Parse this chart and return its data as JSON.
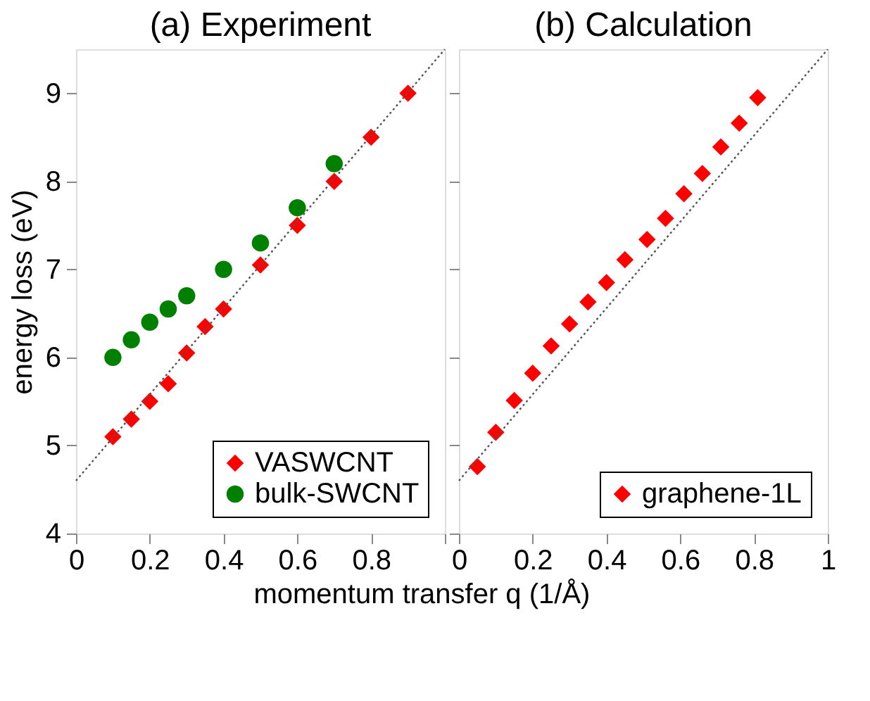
{
  "chart_data": [
    {
      "type": "scatter",
      "title": "(a) Experiment",
      "ylabel": "energy loss (eV)",
      "xlabel": "momentum transfer q (1/Å)",
      "xlim": [
        0,
        1
      ],
      "ylim": [
        4,
        9.5
      ],
      "xticks": [
        0,
        0.2,
        0.4,
        0.6,
        0.8,
        {
          "value": 1,
          "label": null
        }
      ],
      "yticks": [
        4,
        5,
        6,
        7,
        8,
        9
      ],
      "grid": false,
      "legend": "bottom right",
      "series": [
        {
          "name": "VASWCNT",
          "color": "#ff0000",
          "marker": "diamond",
          "x": [
            0.1,
            0.15,
            0.2,
            0.25,
            0.3,
            0.35,
            0.4,
            0.5,
            0.6,
            0.7,
            0.8,
            0.9
          ],
          "values": [
            5.1,
            5.3,
            5.5,
            5.7,
            6.05,
            6.35,
            6.55,
            7.05,
            7.5,
            8.0,
            8.5,
            9.0
          ]
        },
        {
          "name": "bulk-SWCNT",
          "color": "#008000",
          "marker": "circle",
          "x": [
            0.1,
            0.15,
            0.2,
            0.25,
            0.3,
            0.4,
            0.5,
            0.6,
            0.7
          ],
          "values": [
            6.0,
            6.2,
            6.4,
            6.55,
            6.7,
            7.0,
            7.3,
            7.7,
            8.2
          ]
        },
        {
          "type": "line",
          "color": "#555555",
          "line_style": "dotted",
          "x": [
            0,
            1
          ],
          "values": [
            4.6,
            9.5
          ]
        }
      ]
    },
    {
      "type": "scatter",
      "title": "(b) Calculation",
      "xlim": [
        0,
        1
      ],
      "ylim": [
        4,
        9.5
      ],
      "xticks": [
        0,
        0.2,
        0.4,
        0.6,
        0.8,
        1
      ],
      "yticks": [
        4,
        5,
        6,
        7,
        8,
        9
      ],
      "grid": false,
      "legend": "bottom right",
      "tick_labels": "x",
      "series": [
        {
          "name": "graphene-1L",
          "color": "#ff0000",
          "marker": "diamond",
          "x": [
            0.05,
            0.1,
            0.15,
            0.2,
            0.25,
            0.3,
            0.35,
            0.4,
            0.45,
            0.51,
            0.56,
            0.61,
            0.66,
            0.71,
            0.76,
            0.81
          ],
          "values": [
            4.76,
            5.15,
            5.51,
            5.82,
            6.13,
            6.38,
            6.63,
            6.85,
            7.11,
            7.34,
            7.58,
            7.86,
            8.09,
            8.39,
            8.66,
            8.95
          ]
        },
        {
          "type": "line",
          "color": "#555555",
          "line_style": "dotted",
          "x": [
            0,
            1
          ],
          "values": [
            4.6,
            9.5
          ]
        }
      ]
    }
  ]
}
